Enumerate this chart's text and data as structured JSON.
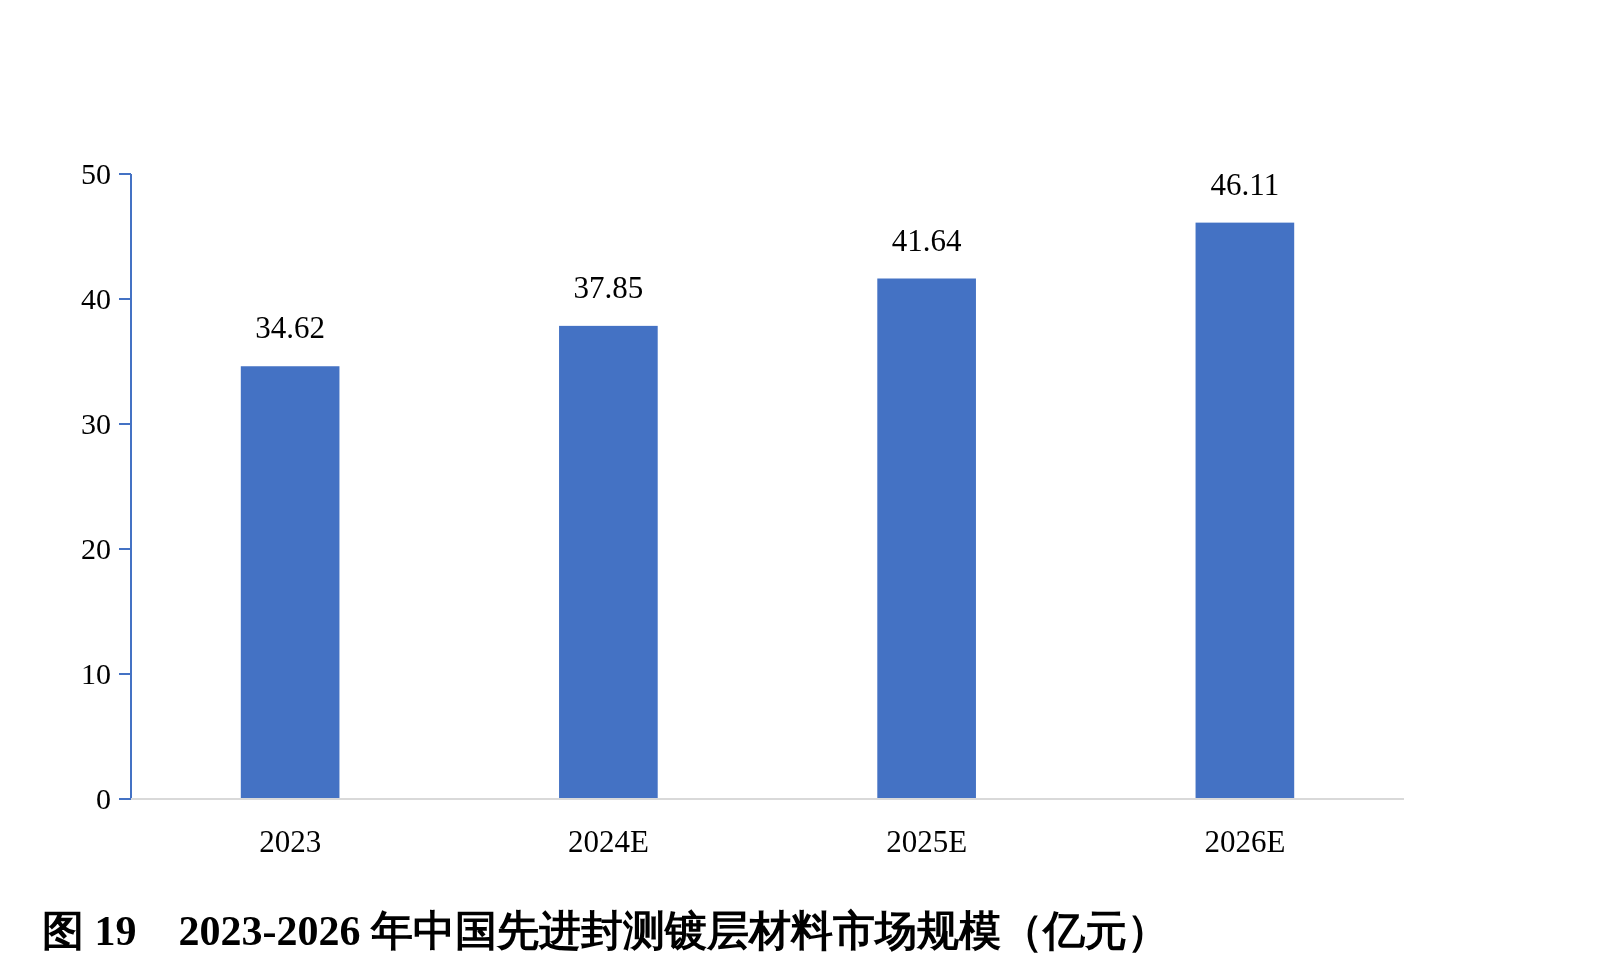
{
  "chart_data": {
    "type": "bar",
    "title": "图 19　2023-2026 年中国先进封测镀层材料市场规模（亿元）",
    "categories": [
      "2023",
      "2024E",
      "2025E",
      "2026E"
    ],
    "values": [
      34.62,
      37.85,
      41.64,
      46.11
    ],
    "color": "#4472c4",
    "ylim": [
      0,
      50
    ],
    "yticks": [
      0,
      10,
      20,
      30,
      40,
      50
    ],
    "data_labels": true,
    "grid": false
  }
}
